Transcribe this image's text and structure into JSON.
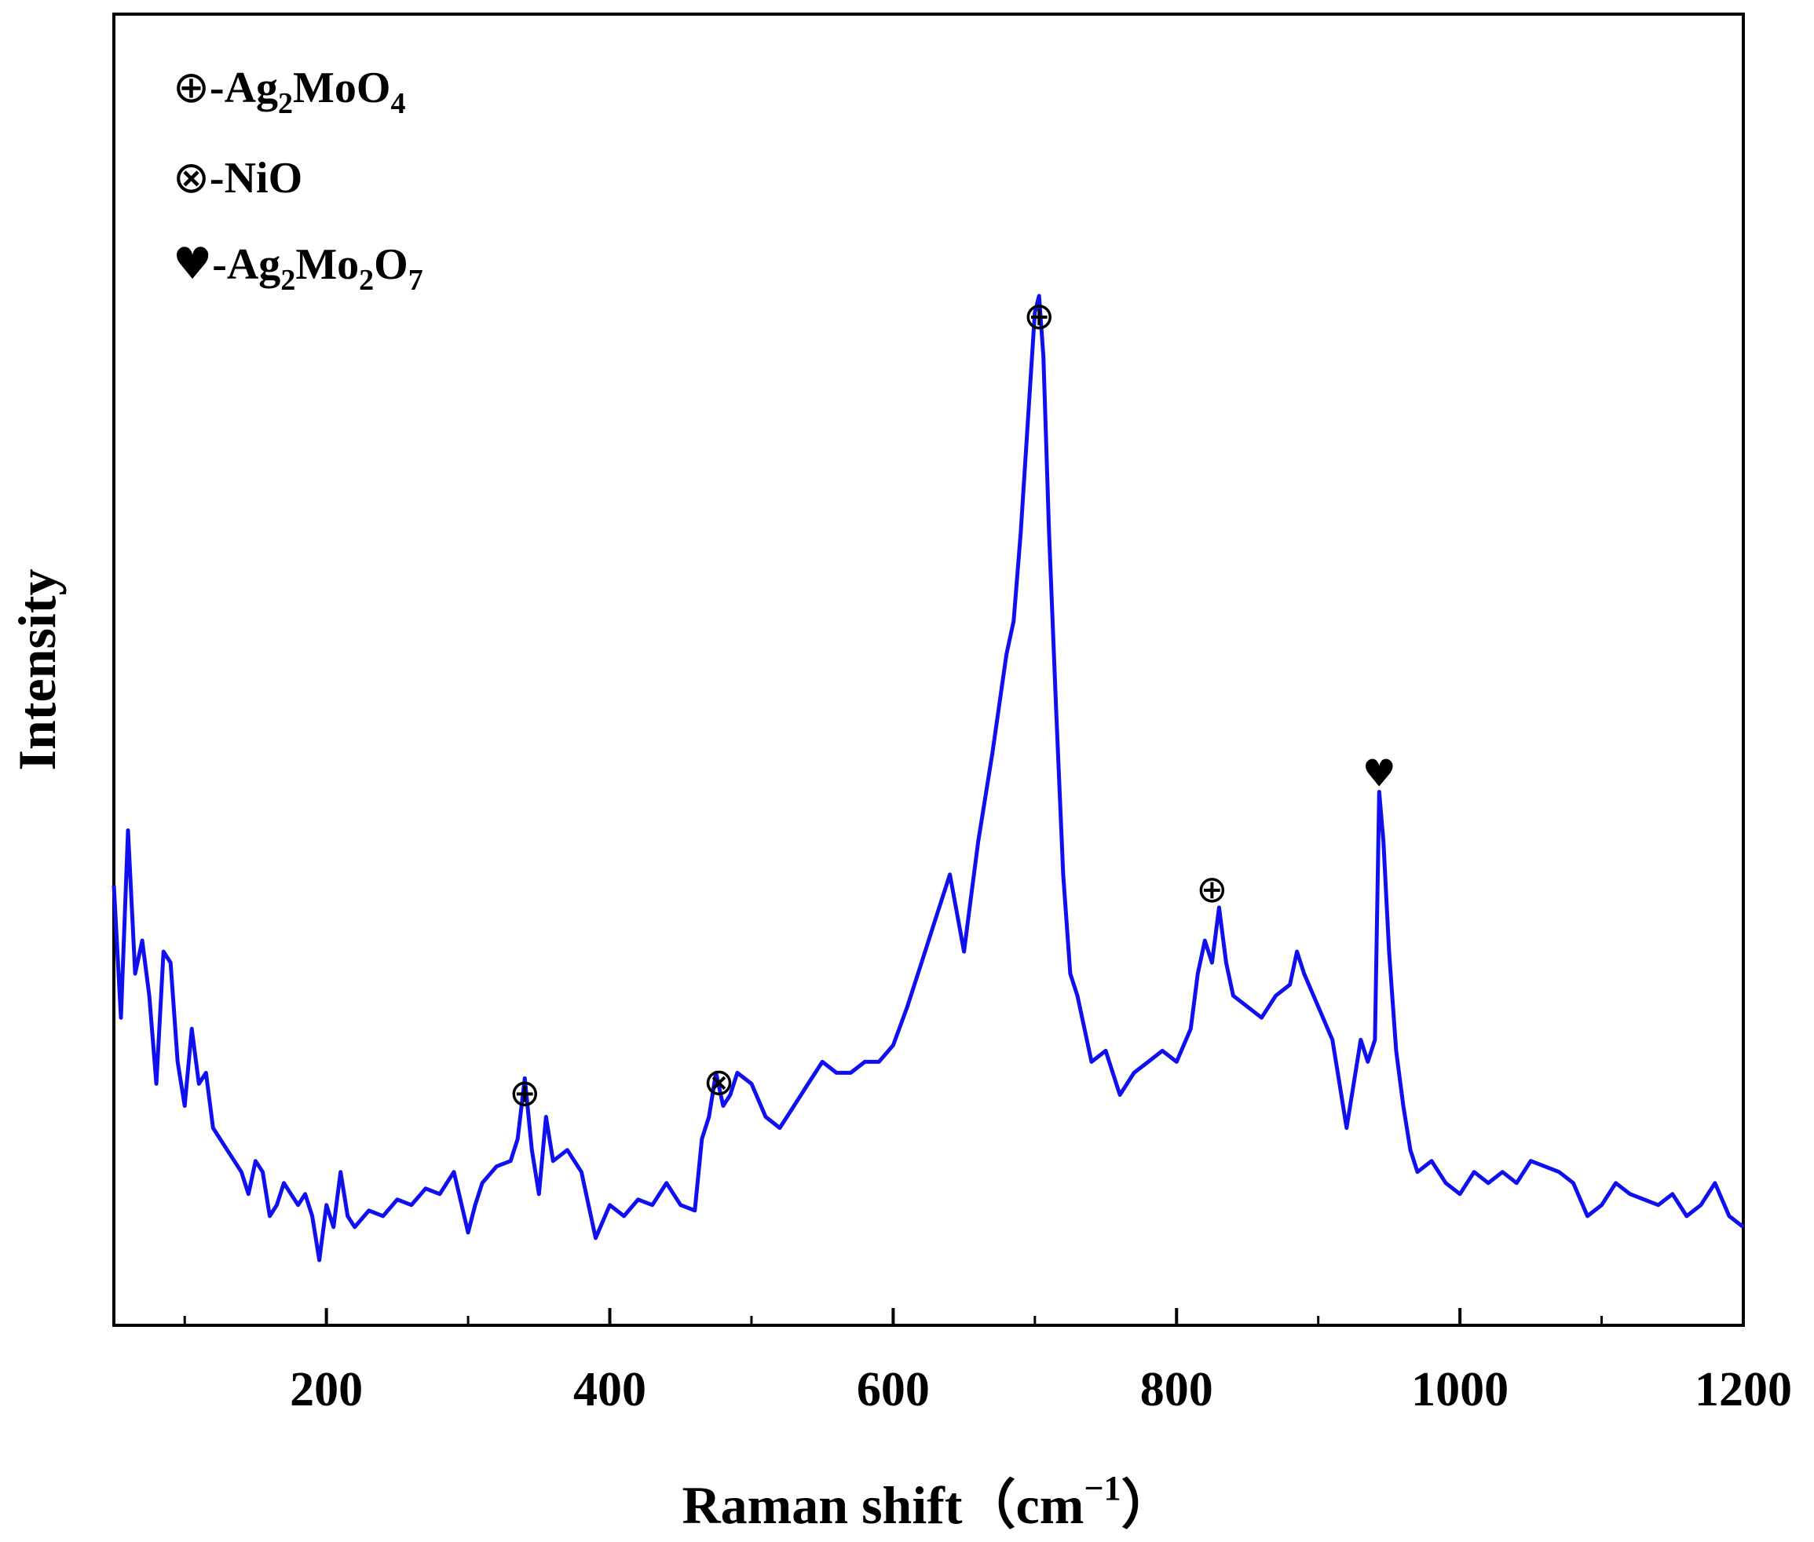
{
  "chart_data": {
    "type": "line",
    "xlabel": "Raman shift（cm",
    "xlabel_sup": "−1",
    "xlabel_end": "）",
    "ylabel": "Intensity",
    "xlim": [
      50,
      1200
    ],
    "ylim": [
      0,
      1000
    ],
    "xticks": [
      200,
      400,
      600,
      800,
      1000,
      1200
    ],
    "xtick_labels": [
      "200",
      "400",
      "600",
      "800",
      "1000",
      "1200"
    ],
    "minor_xticks": [
      100,
      300,
      500,
      700,
      900,
      1100
    ],
    "series_color": "#1010ee",
    "grid": false,
    "legend_position": "top-left",
    "legend": [
      {
        "symbol": "⊕",
        "dash": "-",
        "parts": [
          [
            "Ag",
            false
          ],
          [
            "2",
            true
          ],
          [
            "MoO",
            false
          ],
          [
            "4",
            true
          ]
        ]
      },
      {
        "symbol": "⊗",
        "dash": "-",
        "parts": [
          [
            "NiO",
            false
          ]
        ]
      },
      {
        "symbol": "♥",
        "dash": "-",
        "parts": [
          [
            "Ag",
            false
          ],
          [
            "2",
            true
          ],
          [
            "Mo",
            false
          ],
          [
            "2",
            true
          ],
          [
            "O",
            false
          ],
          [
            "7",
            true
          ]
        ]
      }
    ],
    "annotations": [
      {
        "x": 340,
        "y": 200,
        "symbol": "⊕"
      },
      {
        "x": 477,
        "y": 210,
        "symbol": "⊗"
      },
      {
        "x": 703,
        "y": 905,
        "symbol": "⊕"
      },
      {
        "x": 825,
        "y": 385,
        "symbol": "⊕"
      },
      {
        "x": 943,
        "y": 490,
        "symbol": "♥"
      }
    ],
    "series": [
      {
        "x": [
          50,
          55,
          60,
          65,
          70,
          75,
          80,
          85,
          90,
          95,
          100,
          105,
          110,
          115,
          120,
          125,
          130,
          135,
          140,
          145,
          150,
          155,
          160,
          165,
          170,
          175,
          180,
          185,
          190,
          195,
          200,
          205,
          210,
          215,
          220,
          230,
          240,
          250,
          260,
          270,
          280,
          290,
          300,
          305,
          310,
          320,
          330,
          335,
          340,
          345,
          350,
          355,
          360,
          370,
          380,
          390,
          400,
          410,
          420,
          430,
          440,
          450,
          460,
          465,
          470,
          475,
          480,
          485,
          490,
          500,
          510,
          520,
          530,
          540,
          550,
          560,
          570,
          580,
          590,
          600,
          610,
          620,
          630,
          640,
          645,
          650,
          655,
          660,
          670,
          680,
          685,
          690,
          695,
          700,
          703,
          706,
          710,
          715,
          720,
          725,
          730,
          740,
          750,
          760,
          770,
          780,
          790,
          800,
          810,
          815,
          820,
          825,
          830,
          835,
          840,
          850,
          860,
          870,
          880,
          885,
          890,
          900,
          910,
          915,
          920,
          930,
          935,
          940,
          943,
          946,
          950,
          955,
          960,
          965,
          970,
          980,
          990,
          1000,
          1010,
          1020,
          1030,
          1040,
          1050,
          1060,
          1070,
          1080,
          1090,
          1100,
          1110,
          1120,
          1130,
          1140,
          1150,
          1160,
          1170,
          1180,
          1190,
          1200
        ],
        "y": [
          400,
          280,
          450,
          320,
          350,
          300,
          220,
          340,
          330,
          240,
          200,
          270,
          220,
          230,
          180,
          170,
          160,
          150,
          140,
          120,
          150,
          140,
          100,
          110,
          130,
          120,
          110,
          120,
          100,
          60,
          110,
          90,
          140,
          100,
          90,
          105,
          100,
          115,
          110,
          125,
          120,
          140,
          85,
          110,
          130,
          145,
          150,
          170,
          225,
          160,
          120,
          190,
          150,
          160,
          140,
          80,
          110,
          100,
          115,
          110,
          130,
          110,
          105,
          170,
          190,
          230,
          200,
          210,
          230,
          220,
          190,
          180,
          200,
          220,
          240,
          230,
          230,
          240,
          240,
          255,
          290,
          330,
          370,
          410,
          375,
          340,
          390,
          440,
          520,
          610,
          640,
          720,
          820,
          920,
          935,
          880,
          720,
          560,
          410,
          320,
          300,
          240,
          250,
          210,
          230,
          240,
          250,
          240,
          270,
          320,
          350,
          330,
          380,
          330,
          300,
          290,
          280,
          300,
          310,
          340,
          320,
          290,
          260,
          220,
          180,
          260,
          240,
          260,
          485,
          440,
          340,
          250,
          200,
          160,
          140,
          150,
          130,
          120,
          140,
          130,
          140,
          130,
          150,
          145,
          140,
          130,
          100,
          110,
          130,
          120,
          115,
          110,
          120,
          100,
          110,
          130,
          100,
          90
        ]
      }
    ]
  }
}
